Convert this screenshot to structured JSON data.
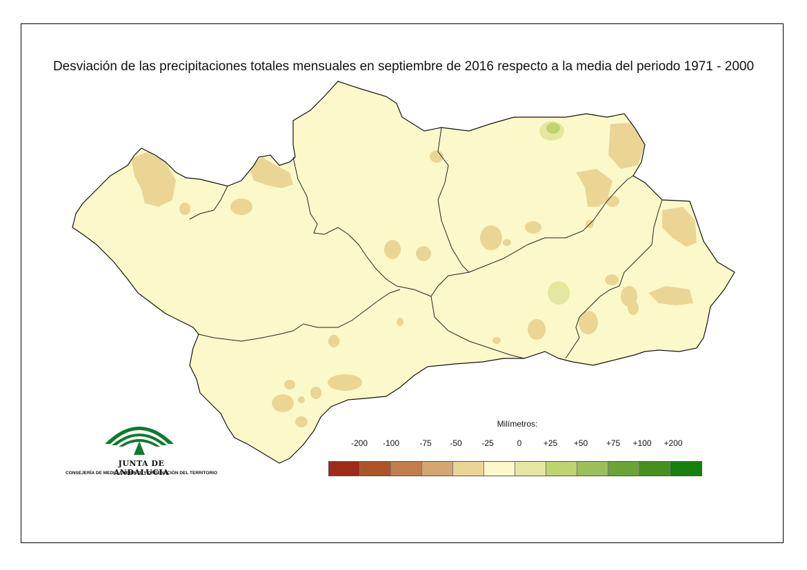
{
  "title": "Desviación de las precipitaciones totales mensuales en septiembre de 2016 respecto a la media del periodo 1971 - 2000",
  "legend": {
    "title": "Milímetros:",
    "ticks": [
      "-200",
      "-100",
      "-75",
      "-50",
      "-25",
      "0",
      "+25",
      "+50",
      "+75",
      "+100",
      "+200"
    ],
    "colors": [
      "#9e2a17",
      "#ad5428",
      "#c17d4c",
      "#d4a672",
      "#ebd595",
      "#fbf9c9",
      "#e4e7a0",
      "#bed46e",
      "#99c05a",
      "#6aa336",
      "#46901e",
      "#17800f"
    ]
  },
  "logo": {
    "name": "JUNTA DE ANDALUCIA",
    "subtitle": "CONSEJERÍA DE MEDIO AMBIENTE Y ORDENACIÓN DEL TERRITORIO",
    "color": "#0e7a2c"
  },
  "map": {
    "region": "Andalucía",
    "base_color": "#fbf9c9",
    "dry_color": "#ebd595",
    "wet_color": "#e4e7a0",
    "wetter_color": "#bed46e"
  }
}
